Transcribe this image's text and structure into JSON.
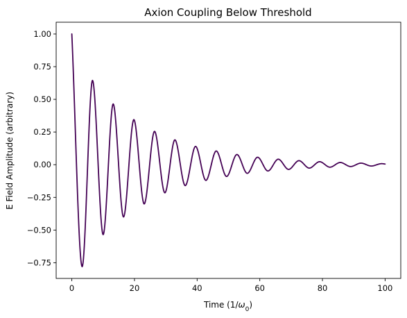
{
  "chart_data": {
    "type": "line",
    "title": "Axion Coupling Below Threshold",
    "xlabel_prefix": "Time (1/",
    "xlabel_symbol": "ω",
    "xlabel_subscript": "0",
    "xlabel_suffix": ")",
    "ylabel": "E Field Amplitude (arbitrary)",
    "xlim": [
      -5,
      105
    ],
    "ylim": [
      -0.87,
      1.09
    ],
    "xticks": [
      0,
      20,
      40,
      60,
      80,
      100
    ],
    "xtick_labels": [
      "0",
      "20",
      "40",
      "60",
      "80",
      "100"
    ],
    "yticks": [
      -0.75,
      -0.5,
      -0.25,
      0.0,
      0.25,
      0.5,
      0.75,
      1.0
    ],
    "ytick_labels": [
      "−0.75",
      "−0.50",
      "−0.25",
      "0.00",
      "0.25",
      "0.50",
      "0.75",
      "1.00"
    ],
    "grid": false,
    "series": [
      {
        "color": "#440154",
        "points": [
          [
            0.0,
            1.0
          ],
          [
            3.3,
            -0.78
          ],
          [
            6.6,
            0.645
          ],
          [
            10.0,
            -0.535
          ],
          [
            13.2,
            0.465
          ],
          [
            16.5,
            -0.4
          ],
          [
            19.8,
            0.345
          ],
          [
            23.1,
            -0.3
          ],
          [
            26.4,
            0.255
          ],
          [
            29.7,
            -0.215
          ],
          [
            32.9,
            0.19
          ],
          [
            36.2,
            -0.16
          ],
          [
            39.5,
            0.14
          ],
          [
            42.8,
            -0.12
          ],
          [
            46.1,
            0.105
          ],
          [
            49.4,
            -0.09
          ],
          [
            52.7,
            0.078
          ],
          [
            56.0,
            -0.066
          ],
          [
            59.3,
            0.057
          ],
          [
            62.6,
            -0.048
          ],
          [
            65.9,
            0.042
          ],
          [
            69.2,
            -0.036
          ],
          [
            72.5,
            0.031
          ],
          [
            75.8,
            -0.026
          ],
          [
            79.1,
            0.023
          ],
          [
            82.4,
            -0.019
          ],
          [
            85.7,
            0.017
          ],
          [
            89.0,
            -0.014
          ],
          [
            92.3,
            0.012
          ],
          [
            95.6,
            -0.01
          ],
          [
            98.9,
            0.008
          ],
          [
            100.0,
            0.005
          ]
        ]
      }
    ]
  }
}
